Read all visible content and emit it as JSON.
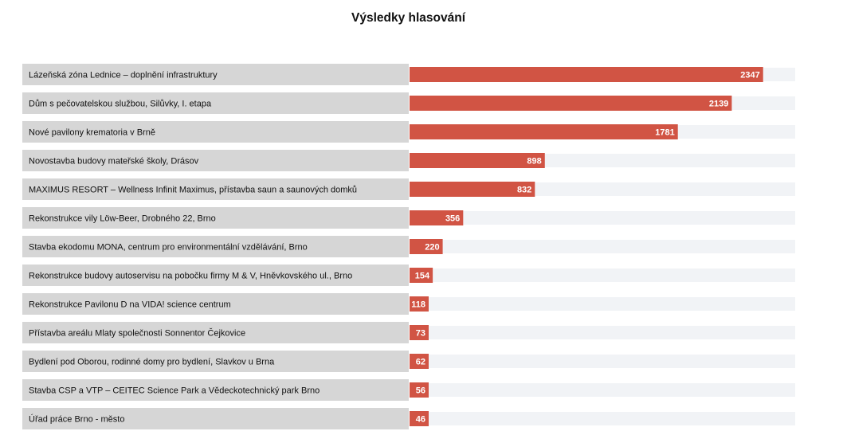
{
  "chart_data": {
    "type": "bar",
    "orientation": "horizontal",
    "title": "Výsledky hlasování",
    "xmax": 2560,
    "colors": {
      "bar": "#d15444",
      "track": "#f1f3f6",
      "label_bg": "#d6d6d6"
    },
    "categories": [
      "Lázeňská zóna Lednice – doplnění infrastruktury",
      "Dům s pečovatelskou službou, Silůvky, I. etapa",
      "Nové pavilony krematoria v Brně",
      "Novostavba budovy mateřské školy, Drásov",
      "MAXIMUS RESORT – Wellness Infinit Maximus, přístavba saun a saunových domků",
      "Rekonstrukce vily Löw-Beer, Drobného 22, Brno",
      "Stavba ekodomu MONA, centrum pro environmentální vzdělávání, Brno",
      "Rekonstrukce budovy autoservisu na pobočku firmy M & V, Hněvkovského ul., Brno",
      "Rekonstrukce Pavilonu D na VIDA! science centrum",
      "Přístavba areálu Mlaty společnosti Sonnentor Čejkovice",
      "Bydlení pod Oborou, rodinné domy pro bydlení, Slavkov u Brna",
      "Stavba CSP a VTP – CEITEC Science Park a Vědeckotechnický park Brno",
      "Úřad práce Brno - město"
    ],
    "values": [
      2347,
      2139,
      1781,
      898,
      832,
      356,
      220,
      154,
      118,
      73,
      62,
      56,
      46
    ]
  }
}
